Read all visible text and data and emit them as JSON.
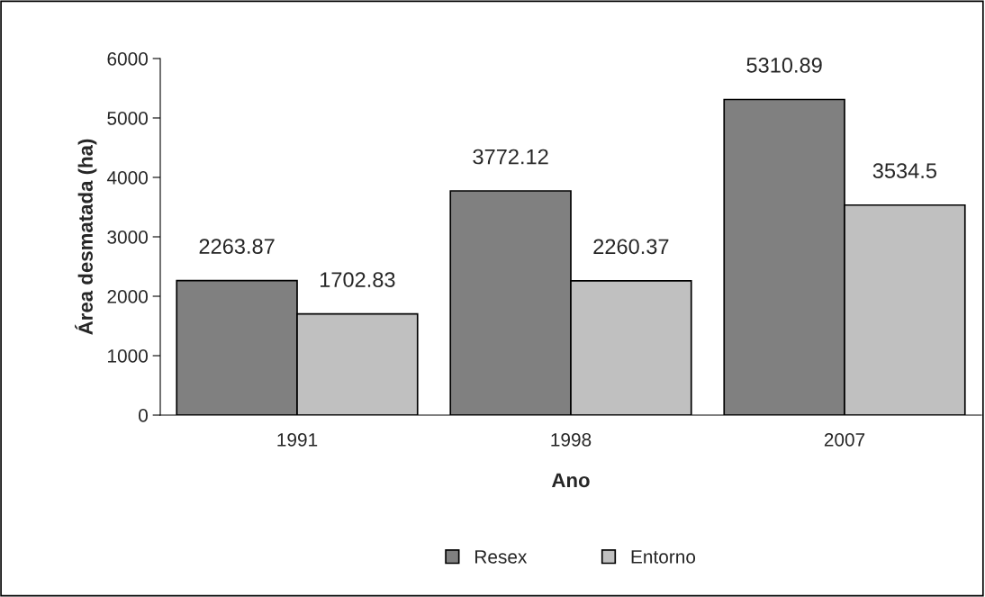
{
  "chart_data": {
    "type": "bar",
    "xlabel": "Ano",
    "ylabel": "Área desmatada (ha)",
    "categories": [
      "1991",
      "1998",
      "2007"
    ],
    "series": [
      {
        "name": "Resex",
        "color": "#808080",
        "values": [
          2263.87,
          3772.12,
          5310.89
        ]
      },
      {
        "name": "Entorno",
        "color": "#c0c0c0",
        "values": [
          1702.83,
          2260.37,
          3534.5
        ]
      }
    ],
    "ylim": [
      0,
      6000
    ],
    "yticks": [
      0,
      1000,
      2000,
      3000,
      4000,
      5000,
      6000
    ],
    "data_labels": true,
    "grid": false,
    "legend": "bottom"
  }
}
